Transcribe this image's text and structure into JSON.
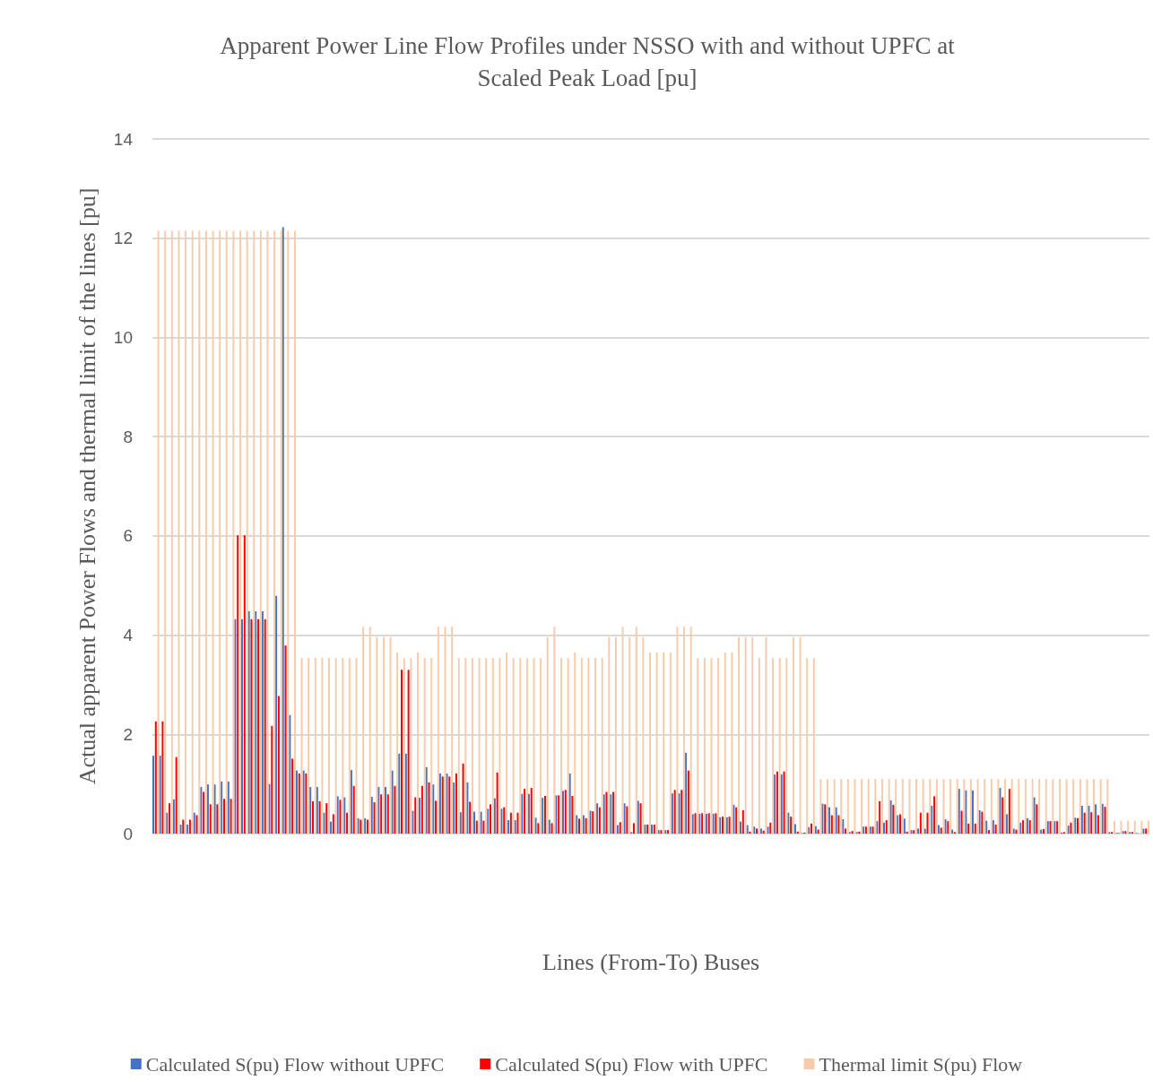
{
  "chart_data": {
    "type": "bar",
    "title": "Apparent Power Line Flow Profiles under NSSO with and without UPFC at\nScaled Peak Load [pu]",
    "xlabel": "Lines (From-To) Buses",
    "ylabel": "Actual apparent Power Flows and thermal limit of the lines [pu]",
    "categories": [
      null,
      null,
      null,
      null,
      null,
      null,
      null,
      null,
      null,
      null,
      null,
      null,
      null,
      null,
      null,
      null,
      null,
      null,
      null,
      null,
      null,
      null,
      null,
      null,
      null,
      null,
      null,
      null,
      null,
      null,
      null,
      null,
      null,
      null,
      null,
      null,
      null,
      null,
      null,
      null,
      null,
      null,
      null,
      null,
      null,
      null,
      null,
      null,
      null,
      null,
      null,
      null,
      null,
      null,
      null,
      null,
      null,
      null,
      null,
      null,
      null,
      null,
      null,
      null,
      null,
      null,
      null,
      null,
      null,
      null,
      null,
      null,
      null,
      null,
      null,
      null,
      null,
      null,
      null,
      null,
      null,
      null,
      null,
      null,
      null,
      null,
      null,
      null,
      null,
      null,
      null,
      null,
      null,
      null,
      null,
      null,
      null,
      null,
      null,
      null,
      null,
      null,
      null,
      null,
      null,
      null,
      null,
      null,
      null,
      null,
      null,
      null,
      null,
      null,
      null,
      null,
      null,
      null,
      null,
      null,
      null,
      null,
      null,
      null,
      null,
      null,
      null,
      null,
      null,
      null,
      null,
      null,
      null,
      null,
      null,
      null,
      null,
      null,
      null,
      null,
      null,
      null,
      null,
      null,
      null,
      null
    ],
    "series": [
      {
        "name": "Calculated S(pu) Flow without UPFC",
        "color": "#4472c4",
        "values": [
          1.57,
          1.57,
          0.42,
          0.69,
          0.18,
          0.18,
          0.42,
          0.94,
          0.99,
          0.99,
          1.05,
          1.05,
          4.32,
          4.32,
          4.48,
          4.48,
          4.48,
          1.0,
          4.79,
          12.22,
          2.39,
          1.27,
          1.27,
          0.94,
          0.94,
          0.42,
          0.24,
          0.75,
          0.73,
          1.28,
          0.31,
          0.31,
          0.74,
          0.94,
          0.94,
          1.27,
          1.61,
          1.61,
          0.46,
          0.72,
          1.34,
          0.99,
          1.21,
          1.21,
          1.03,
          0.43,
          1.03,
          0.44,
          0.44,
          0.5,
          0.71,
          0.5,
          0.27,
          0.27,
          0.8,
          0.8,
          0.32,
          0.72,
          0.28,
          0.77,
          0.86,
          1.21,
          0.37,
          0.37,
          0.46,
          0.61,
          0.79,
          0.79,
          0.17,
          0.61,
          0.03,
          0.66,
          0.18,
          0.18,
          0.07,
          0.07,
          0.81,
          0.81,
          1.63,
          0.39,
          0.4,
          0.4,
          0.4,
          0.33,
          0.33,
          0.58,
          0.24,
          0.17,
          0.14,
          0.1,
          0.14,
          1.19,
          1.19,
          0.42,
          0.19,
          0.01,
          0.13,
          0.15,
          0.6,
          0.53,
          0.53,
          0.29,
          0.03,
          0.03,
          0.14,
          0.14,
          0.25,
          0.22,
          0.67,
          0.37,
          0.3,
          0.07,
          0.1,
          0.1,
          0.56,
          0.17,
          0.29,
          0.08,
          0.9,
          0.87,
          0.87,
          0.47,
          0.26,
          0.27,
          0.92,
          0.39,
          0.1,
          0.22,
          0.31,
          0.73,
          0.08,
          0.25,
          0.25,
          0.02,
          0.16,
          0.32,
          0.56,
          0.56,
          0.59,
          0.6,
          0.03,
          0.01,
          0.05,
          0.03,
          0.01,
          0.1
        ]
      },
      {
        "name": "Calculated S(pu) Flow with UPFC",
        "color": "#ff0000",
        "values": [
          2.26,
          2.26,
          0.61,
          1.54,
          0.28,
          0.28,
          0.37,
          0.84,
          0.59,
          0.59,
          0.7,
          0.7,
          6.01,
          6.01,
          4.32,
          4.32,
          4.32,
          2.17,
          2.77,
          3.79,
          1.51,
          1.21,
          1.21,
          0.65,
          0.65,
          0.61,
          0.39,
          0.68,
          0.42,
          0.96,
          0.28,
          0.28,
          0.63,
          0.79,
          0.79,
          0.96,
          3.3,
          3.3,
          0.73,
          0.96,
          1.03,
          0.66,
          1.15,
          1.15,
          1.21,
          1.41,
          0.64,
          0.26,
          0.26,
          0.59,
          1.23,
          0.53,
          0.42,
          0.42,
          0.9,
          0.92,
          0.21,
          0.76,
          0.21,
          0.77,
          0.88,
          0.76,
          0.3,
          0.31,
          0.45,
          0.53,
          0.84,
          0.84,
          0.23,
          0.55,
          0.21,
          0.61,
          0.18,
          0.18,
          0.07,
          0.07,
          0.88,
          0.88,
          1.27,
          0.41,
          0.41,
          0.41,
          0.41,
          0.34,
          0.34,
          0.53,
          0.47,
          0.04,
          0.1,
          0.06,
          0.22,
          1.25,
          1.25,
          0.34,
          0.04,
          0.02,
          0.2,
          0.08,
          0.59,
          0.37,
          0.37,
          0.1,
          0.05,
          0.04,
          0.14,
          0.14,
          0.65,
          0.27,
          0.58,
          0.39,
          0.04,
          0.07,
          0.42,
          0.42,
          0.75,
          0.12,
          0.25,
          0.03,
          0.46,
          0.2,
          0.2,
          0.44,
          0.07,
          0.18,
          0.73,
          0.9,
          0.08,
          0.27,
          0.27,
          0.59,
          0.09,
          0.25,
          0.25,
          0.03,
          0.22,
          0.31,
          0.42,
          0.43,
          0.37,
          0.54,
          0.03,
          0.01,
          0.05,
          0.03,
          null,
          0.1
        ]
      },
      {
        "name": "Thermal limit S(pu) Flow",
        "color": "#f8cbad",
        "values": [
          12.15,
          12.15,
          12.15,
          12.15,
          12.15,
          12.15,
          12.15,
          12.15,
          12.15,
          12.15,
          12.15,
          12.15,
          12.15,
          12.15,
          12.15,
          12.15,
          12.15,
          12.15,
          12.15,
          12.15,
          12.15,
          3.54,
          3.54,
          3.54,
          3.54,
          3.54,
          3.54,
          3.54,
          3.54,
          3.54,
          4.17,
          4.17,
          3.96,
          3.96,
          3.96,
          3.65,
          3.54,
          3.54,
          3.65,
          3.54,
          3.54,
          4.17,
          4.17,
          4.17,
          3.54,
          3.54,
          3.54,
          3.54,
          3.54,
          3.54,
          3.54,
          3.65,
          3.54,
          3.54,
          3.54,
          3.54,
          3.54,
          3.96,
          4.17,
          3.54,
          3.54,
          3.65,
          3.54,
          3.54,
          3.54,
          3.54,
          3.96,
          3.96,
          4.17,
          3.96,
          4.17,
          3.96,
          3.65,
          3.65,
          3.65,
          3.65,
          4.17,
          4.17,
          4.17,
          3.54,
          3.54,
          3.54,
          3.54,
          3.65,
          3.65,
          3.96,
          3.96,
          3.96,
          3.54,
          3.96,
          3.54,
          3.54,
          3.54,
          3.96,
          3.96,
          3.54,
          3.54,
          1.1,
          1.1,
          1.1,
          1.1,
          1.1,
          1.1,
          1.1,
          1.1,
          1.1,
          1.1,
          1.1,
          1.1,
          1.1,
          1.1,
          1.1,
          1.1,
          1.1,
          1.1,
          1.1,
          1.1,
          1.1,
          1.1,
          1.1,
          1.1,
          1.1,
          1.1,
          1.1,
          1.1,
          1.1,
          1.1,
          1.1,
          1.1,
          1.1,
          1.1,
          1.1,
          1.1,
          1.1,
          1.1,
          1.1,
          1.1,
          1.1,
          1.1,
          1.1,
          0.26,
          0.26,
          0.26,
          0.26,
          0.26,
          0.26
        ]
      }
    ],
    "ylim": [
      0,
      14
    ],
    "yticks": [
      0,
      2,
      4,
      6,
      8,
      10,
      12,
      14
    ],
    "grid": "y",
    "legend": "bottom"
  }
}
